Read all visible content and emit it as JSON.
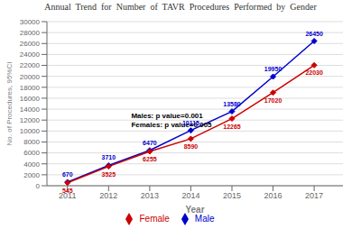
{
  "chart_data": {
    "type": "line",
    "title": "Annual  Trend  for  Number  of  TAVR  Procedures  Performed  by  Gender",
    "x_label": "Year",
    "y_label": "No. of Procedures, 95%CI",
    "x": [
      2011,
      2012,
      2013,
      2014,
      2015,
      2016,
      2017
    ],
    "series": [
      {
        "name": "Male",
        "color": "#0000cc",
        "marker": "diamond",
        "values": [
          670,
          3710,
          6470,
          10115,
          13580,
          19950,
          26450
        ]
      },
      {
        "name": "Female",
        "color": "#cc0000",
        "marker": "diamond",
        "values": [
          545,
          3525,
          6255,
          8590,
          12265,
          17020,
          22030
        ]
      }
    ],
    "xlim": [
      2010.5,
      2017.7
    ],
    "xticks": [
      2011,
      2012,
      2013,
      2014,
      2015,
      2016,
      2017
    ],
    "ylim": [
      0,
      30000
    ],
    "yticks": [
      0,
      2000,
      4000,
      6000,
      8000,
      10000,
      12000,
      14000,
      16000,
      18000,
      20000,
      22000,
      24000,
      26000,
      28000,
      30000
    ],
    "grid": true,
    "legend": "bottom",
    "data_labels": true,
    "annotations": [
      {
        "text": "Males: p value=0.001\nFemales: p value=0.005",
        "x": 2012.55,
        "y": 13500
      }
    ]
  }
}
